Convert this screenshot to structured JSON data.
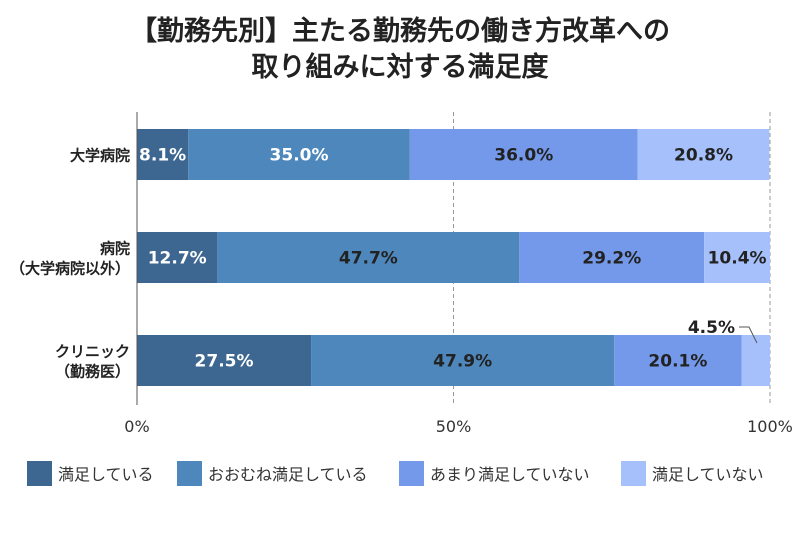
{
  "chart_data": {
    "type": "bar",
    "orientation": "horizontal-stacked-100",
    "title_lines": [
      "【勤務先別】主たる勤務先の働き方改革への",
      "取り組みに対する満足度"
    ],
    "categories": [
      [
        "大学病院"
      ],
      [
        "病院",
        "（大学病院以外）"
      ],
      [
        "クリニック",
        "（勤務医）"
      ]
    ],
    "series": [
      {
        "name": "満足している",
        "color": "#3d6791",
        "label_color": "#ffffff",
        "values": [
          8.1,
          12.7,
          27.5
        ]
      },
      {
        "name": "おおむね満足している",
        "color": "#4e87bb",
        "label_color": "#222222",
        "values": [
          35.0,
          47.7,
          47.9
        ]
      },
      {
        "name": "あまり満足していない",
        "color": "#7499ea",
        "label_color": "#222222",
        "values": [
          36.0,
          29.2,
          20.1
        ]
      },
      {
        "name": "満足していない",
        "color": "#a5c0fa",
        "label_color": "#222222",
        "values": [
          20.8,
          10.4,
          4.5
        ]
      }
    ],
    "data_labels": [
      [
        "8.1%",
        "35.0%",
        "36.0%",
        "20.8%"
      ],
      [
        "12.7%",
        "47.7%",
        "29.2%",
        "10.4%"
      ],
      [
        "27.5%",
        "47.9%",
        "20.1%",
        "4.5%"
      ]
    ],
    "xticks": [
      "0%",
      "50%",
      "100%"
    ],
    "xlim": [
      0,
      100
    ],
    "grid": "dashed vertical at 50% and 100%",
    "legend_position": "bottom"
  }
}
